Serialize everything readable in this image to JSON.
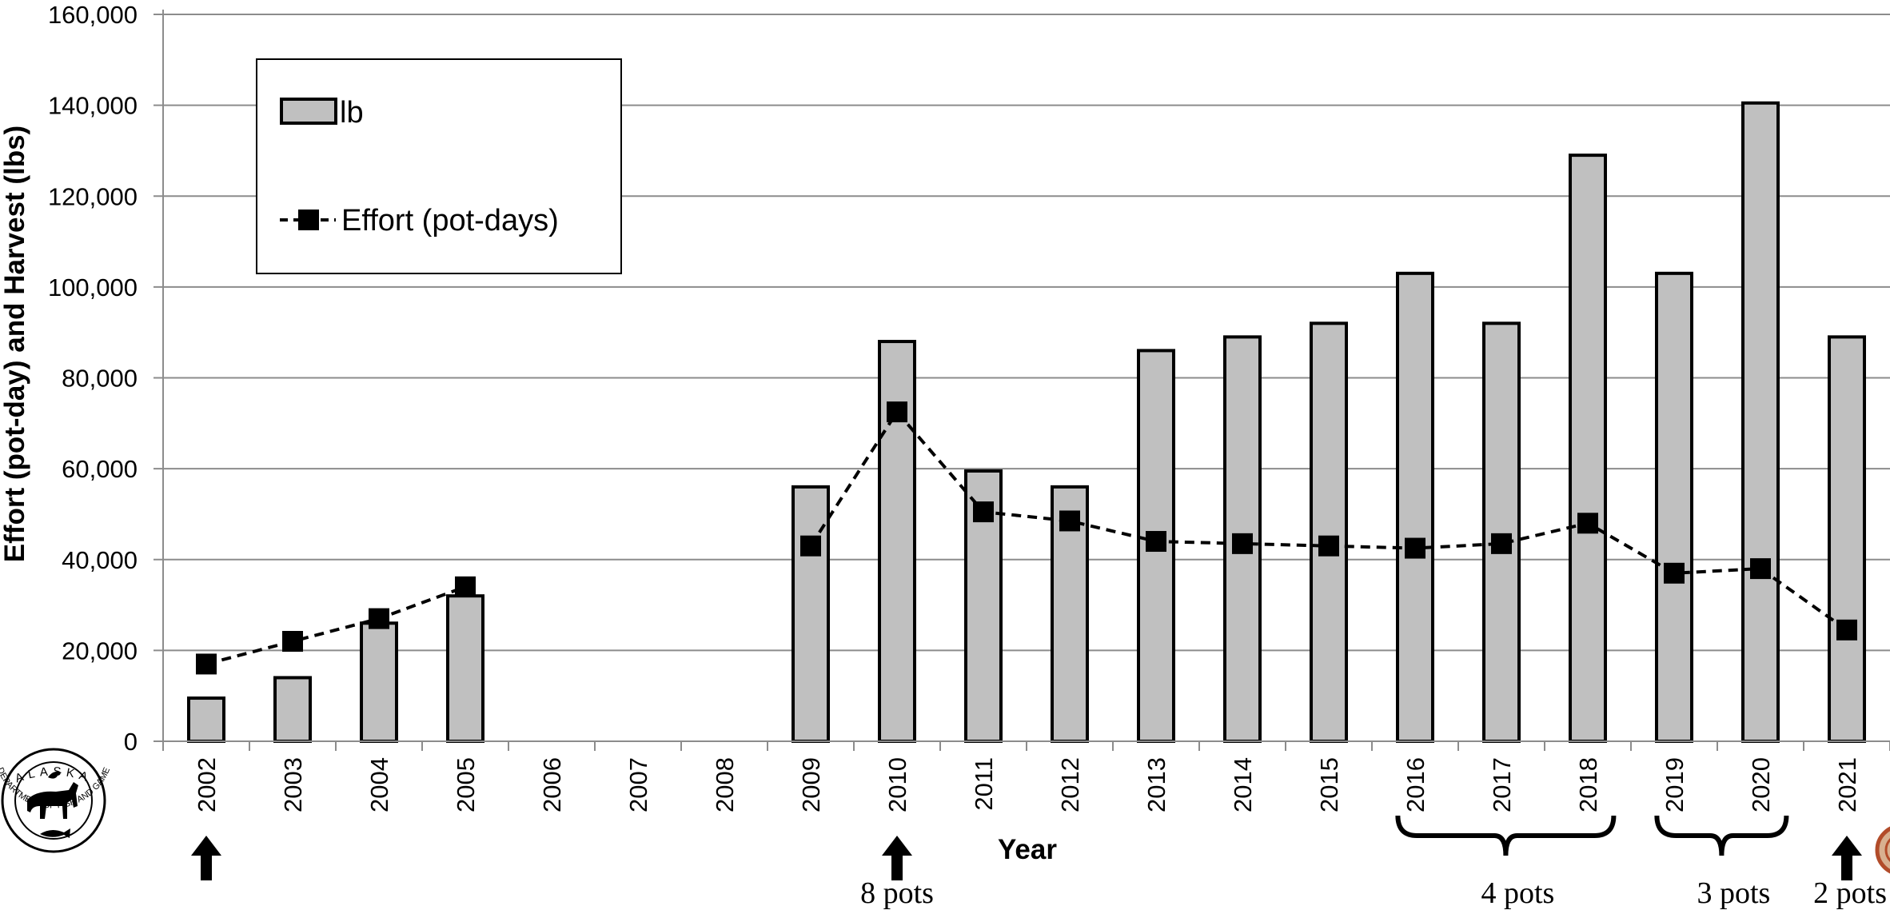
{
  "chart_data": {
    "type": "bar",
    "xlabel": "Year",
    "ylabel": "Effort (pot-day) and Harvest (lbs)",
    "ylim": [
      0,
      160000
    ],
    "y_ticks": [
      "0",
      "20,000",
      "40,000",
      "60,000",
      "80,000",
      "100,000",
      "120,000",
      "140,000",
      "160,000"
    ],
    "grid": true,
    "legend_position": "top-left",
    "categories": [
      "2002",
      "2003",
      "2004",
      "2005",
      "2006",
      "2007",
      "2008",
      "2009",
      "2010",
      "2011",
      "2012",
      "2013",
      "2014",
      "2015",
      "2016",
      "2017",
      "2018",
      "2019",
      "2020",
      "2021"
    ],
    "series": [
      {
        "name": "lb",
        "kind": "bar",
        "color": "#c0c0c0",
        "values": [
          9500,
          14000,
          26000,
          32000,
          null,
          null,
          null,
          56000,
          88000,
          59500,
          56000,
          86000,
          89000,
          92000,
          103000,
          92000,
          129000,
          103000,
          140500,
          89000
        ]
      },
      {
        "name": "Effort (pot-days)",
        "kind": "line",
        "color": "#000000",
        "values": [
          17000,
          22000,
          27000,
          34000,
          null,
          null,
          null,
          43000,
          72500,
          50500,
          48500,
          44000,
          43500,
          43000,
          42500,
          43500,
          48000,
          37000,
          38000,
          24500
        ]
      }
    ],
    "annotations": [
      {
        "from_year": "2002",
        "label": ""
      },
      {
        "from_year": "2010",
        "label": "8 pots"
      },
      {
        "from_year": "2016",
        "to_year": "2018",
        "label": "4 pots"
      },
      {
        "from_year": "2019",
        "to_year": "2020",
        "label": "3 pots"
      },
      {
        "from_year": "2021",
        "label": "2 pots"
      }
    ]
  },
  "logo": {
    "top_text": "ALASKA",
    "bottom_text": "DEPARTMENT OF FISH AND GAME"
  }
}
